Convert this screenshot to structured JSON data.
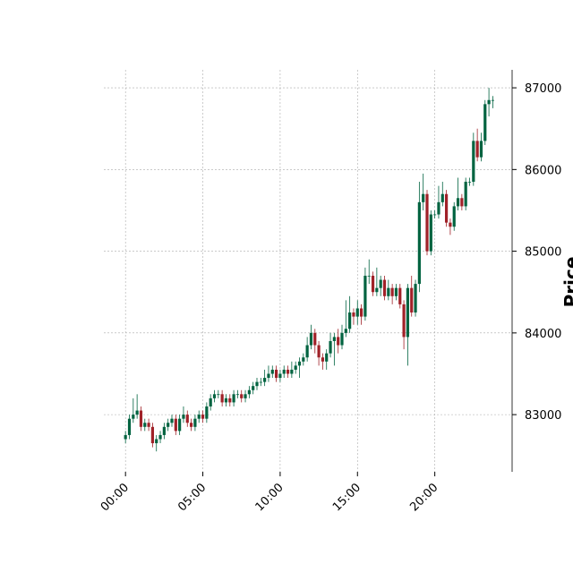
{
  "chart_data": {
    "type": "candlestick",
    "ylabel": "Price",
    "x": [
      0,
      0.25,
      0.5,
      0.75,
      1,
      1.25,
      1.5,
      1.75,
      2,
      2.25,
      2.5,
      2.75,
      3,
      3.25,
      3.5,
      3.75,
      4,
      4.25,
      4.5,
      4.75,
      5,
      5.25,
      5.5,
      5.75,
      6,
      6.25,
      6.5,
      6.75,
      7,
      7.25,
      7.5,
      7.75,
      8,
      8.25,
      8.5,
      8.75,
      9,
      9.25,
      9.5,
      9.75,
      10,
      10.25,
      10.5,
      10.75,
      11,
      11.25,
      11.5,
      11.75,
      12,
      12.25,
      12.5,
      12.75,
      13,
      13.25,
      13.5,
      13.75,
      14,
      14.25,
      14.5,
      14.75,
      15,
      15.25,
      15.5,
      15.75,
      16,
      16.25,
      16.5,
      16.75,
      17,
      17.25,
      17.5,
      17.75,
      18,
      18.25,
      18.5,
      18.75,
      19,
      19.25,
      19.5,
      19.75,
      20,
      20.25,
      20.5,
      20.75,
      21,
      21.25,
      21.5,
      21.75,
      22,
      22.25,
      22.5,
      22.75,
      23,
      23.25,
      23.5,
      23.75
    ],
    "open": [
      82700,
      82750,
      82950,
      83000,
      83050,
      82850,
      82900,
      82850,
      82650,
      82700,
      82750,
      82850,
      82900,
      82950,
      82800,
      82950,
      83000,
      82900,
      82850,
      82950,
      83000,
      82950,
      83100,
      83200,
      83250,
      83250,
      83150,
      83200,
      83150,
      83250,
      83250,
      83200,
      83250,
      83300,
      83350,
      83400,
      83400,
      83450,
      83500,
      83550,
      83450,
      83500,
      83550,
      83500,
      83550,
      83600,
      83650,
      83700,
      83850,
      84000,
      83850,
      83700,
      83650,
      83750,
      83900,
      83950,
      83850,
      84000,
      84050,
      84250,
      84200,
      84300,
      84200,
      84700,
      84700,
      84500,
      84550,
      84650,
      84450,
      84550,
      84450,
      84550,
      84350,
      83950,
      84550,
      84250,
      84600,
      85600,
      85700,
      85000,
      85450,
      85450,
      85600,
      85700,
      85350,
      85300,
      85550,
      85650,
      85550,
      85850,
      85850,
      86350,
      86150,
      86350,
      86800,
      86850
    ],
    "high": [
      82800,
      83000,
      83200,
      83250,
      83100,
      82950,
      82950,
      82900,
      82750,
      82800,
      82900,
      82950,
      83000,
      83000,
      83000,
      83100,
      83050,
      82950,
      83000,
      83050,
      83050,
      83150,
      83250,
      83300,
      83300,
      83300,
      83250,
      83250,
      83300,
      83300,
      83300,
      83300,
      83350,
      83400,
      83450,
      83450,
      83550,
      83600,
      83600,
      83600,
      83550,
      83600,
      83600,
      83650,
      83650,
      83700,
      83750,
      83950,
      84100,
      84050,
      83900,
      83750,
      83800,
      84000,
      84000,
      84050,
      84100,
      84400,
      84450,
      84300,
      84400,
      84350,
      84800,
      84900,
      84750,
      84800,
      84700,
      84700,
      84650,
      84600,
      84600,
      84600,
      84400,
      84600,
      84700,
      84650,
      85850,
      85950,
      85750,
      85500,
      85500,
      85800,
      85850,
      85750,
      85400,
      85600,
      85900,
      85700,
      85900,
      85900,
      86450,
      86500,
      86450,
      86850,
      87000,
      86900
    ],
    "low": [
      82650,
      82700,
      82900,
      82950,
      82800,
      82800,
      82800,
      82600,
      82550,
      82650,
      82700,
      82800,
      82850,
      82750,
      82750,
      82900,
      82850,
      82800,
      82800,
      82900,
      82900,
      82900,
      83050,
      83150,
      83200,
      83100,
      83100,
      83100,
      83100,
      83200,
      83150,
      83150,
      83200,
      83250,
      83300,
      83350,
      83350,
      83400,
      83450,
      83400,
      83400,
      83450,
      83450,
      83450,
      83500,
      83450,
      83600,
      83650,
      83800,
      83750,
      83600,
      83550,
      83550,
      83700,
      83600,
      83750,
      83800,
      83950,
      84000,
      84100,
      84100,
      84100,
      84150,
      84600,
      84450,
      84450,
      84450,
      84400,
      84400,
      84350,
      84400,
      84300,
      83800,
      83600,
      84200,
      84200,
      84500,
      85500,
      84950,
      84950,
      85400,
      85400,
      85550,
      85300,
      85200,
      85250,
      85500,
      85500,
      85500,
      85800,
      85800,
      86100,
      86100,
      86300,
      86650,
      86750
    ],
    "close": [
      82750,
      82950,
      83000,
      83050,
      82850,
      82900,
      82850,
      82650,
      82700,
      82750,
      82850,
      82900,
      82950,
      82800,
      82950,
      83000,
      82900,
      82850,
      82950,
      83000,
      82950,
      83100,
      83200,
      83250,
      83250,
      83150,
      83200,
      83150,
      83250,
      83250,
      83200,
      83250,
      83300,
      83350,
      83400,
      83400,
      83450,
      83500,
      83550,
      83450,
      83500,
      83550,
      83500,
      83550,
      83600,
      83650,
      83700,
      83850,
      84000,
      83850,
      83700,
      83650,
      83750,
      83900,
      83950,
      83850,
      84000,
      84050,
      84250,
      84200,
      84300,
      84200,
      84700,
      84700,
      84500,
      84550,
      84650,
      84450,
      84550,
      84450,
      84550,
      84350,
      83950,
      84550,
      84250,
      84600,
      85600,
      85700,
      85000,
      85450,
      85450,
      85600,
      85700,
      85350,
      85300,
      85550,
      85650,
      85550,
      85850,
      85850,
      86350,
      86150,
      86350,
      86800,
      86850,
      86850
    ],
    "up_color": "#006340",
    "down_color": "#a02128",
    "xlim": [
      -1.4,
      25
    ],
    "ylim": [
      82300,
      87220
    ],
    "xticks": [
      {
        "value": 0,
        "label": "00:00"
      },
      {
        "value": 5,
        "label": "05:00"
      },
      {
        "value": 10,
        "label": "10:00"
      },
      {
        "value": 15,
        "label": "15:00"
      },
      {
        "value": 20,
        "label": "20:00"
      }
    ],
    "yticks": [
      83000,
      84000,
      85000,
      86000,
      87000
    ],
    "grid": true
  }
}
